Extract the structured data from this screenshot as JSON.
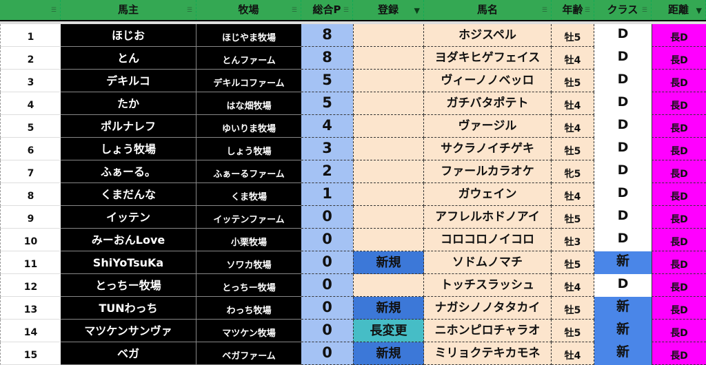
{
  "headers": [
    {
      "label": "",
      "filter": "filter-icon",
      "active": false
    },
    {
      "label": "馬主",
      "filter": "filter-icon",
      "active": false
    },
    {
      "label": "牧場",
      "filter": "filter-icon",
      "active": false
    },
    {
      "label": "総合P",
      "filter": "filter-icon",
      "active": false
    },
    {
      "label": "登録",
      "filter": "funnel-icon",
      "active": true
    },
    {
      "label": "馬名",
      "filter": "filter-icon",
      "active": false
    },
    {
      "label": "年齢",
      "filter": "filter-icon",
      "active": false
    },
    {
      "label": "クラス",
      "filter": "filter-icon",
      "active": false
    },
    {
      "label": "距離",
      "filter": "funnel-icon",
      "active": true
    }
  ],
  "colors": {
    "header": "#34a853",
    "points": "#a4c2f4",
    "peach": "#fce5cd",
    "new_reg": "#3c78d8",
    "change_reg": "#46bdc6",
    "new_class": "#4a86e8",
    "distance": "#ff00ff"
  },
  "rows": [
    {
      "no": "1",
      "owner": "ほじお",
      "farm": "ほじやま牧場",
      "points": "8",
      "reg": "",
      "horse": "ホジスペル",
      "age": "牡5",
      "cls": "D",
      "dist": "長D"
    },
    {
      "no": "2",
      "owner": "とん",
      "farm": "とんファーム",
      "points": "8",
      "reg": "",
      "horse": "ヨダキヒゲフェイス",
      "age": "牡4",
      "cls": "D",
      "dist": "長D"
    },
    {
      "no": "3",
      "owner": "デキルコ",
      "farm": "デキルコファーム",
      "points": "5",
      "reg": "",
      "horse": "ヴィーノノベッロ",
      "age": "牡5",
      "cls": "D",
      "dist": "長D"
    },
    {
      "no": "4",
      "owner": "たか",
      "farm": "はな畑牧場",
      "points": "5",
      "reg": "",
      "horse": "ガチバタポテト",
      "age": "牡4",
      "cls": "D",
      "dist": "長D"
    },
    {
      "no": "5",
      "owner": "ポルナレフ",
      "farm": "ゆいりま牧場",
      "points": "4",
      "reg": "",
      "horse": "ヴァージル",
      "age": "牡4",
      "cls": "D",
      "dist": "長D"
    },
    {
      "no": "6",
      "owner": "しょう牧場",
      "farm": "しょう牧場",
      "points": "3",
      "reg": "",
      "horse": "サクラノイチゲキ",
      "age": "牡5",
      "cls": "D",
      "dist": "長D"
    },
    {
      "no": "7",
      "owner": "ふぁーる。",
      "farm": "ふぁーるファーム",
      "points": "2",
      "reg": "",
      "horse": "ファールカラオケ",
      "age": "牝5",
      "cls": "D",
      "dist": "長D"
    },
    {
      "no": "8",
      "owner": "くまだんな",
      "farm": "くま牧場",
      "points": "1",
      "reg": "",
      "horse": "ガウェイン",
      "age": "牡4",
      "cls": "D",
      "dist": "長D"
    },
    {
      "no": "9",
      "owner": "イッテン",
      "farm": "イッテンファーム",
      "points": "0",
      "reg": "",
      "horse": "アフレルホドノアイ",
      "age": "牡5",
      "cls": "D",
      "dist": "長D"
    },
    {
      "no": "10",
      "owner": "みーおんLove",
      "farm": "小栗牧場",
      "points": "0",
      "reg": "",
      "horse": "コロコロノイコロ",
      "age": "牡3",
      "cls": "D",
      "dist": "長D"
    },
    {
      "no": "11",
      "owner": "ShiYoTsuKa",
      "farm": "ソワカ牧場",
      "points": "0",
      "reg": "新規",
      "horse": "ソドムノマチ",
      "age": "牡5",
      "cls": "新",
      "dist": "長D"
    },
    {
      "no": "12",
      "owner": "とっちー牧場",
      "farm": "とっちー牧場",
      "points": "0",
      "reg": "",
      "horse": "トッチスラッシュ",
      "age": "牡4",
      "cls": "D",
      "dist": "長D"
    },
    {
      "no": "13",
      "owner": "TUNわっち",
      "farm": "わっち牧場",
      "points": "0",
      "reg": "新規",
      "horse": "ナガシノノタタカイ",
      "age": "牡5",
      "cls": "新",
      "dist": "長D"
    },
    {
      "no": "14",
      "owner": "マツケンサンヴァ",
      "farm": "マツケン牧場",
      "points": "0",
      "reg": "長変更",
      "horse": "ニホンピロチャラオ",
      "age": "牡5",
      "cls": "新",
      "dist": "長D"
    },
    {
      "no": "15",
      "owner": "ベガ",
      "farm": "ベガファーム",
      "points": "0",
      "reg": "新規",
      "horse": "ミリョクテキカモネ",
      "age": "牡4",
      "cls": "新",
      "dist": "長D"
    }
  ]
}
